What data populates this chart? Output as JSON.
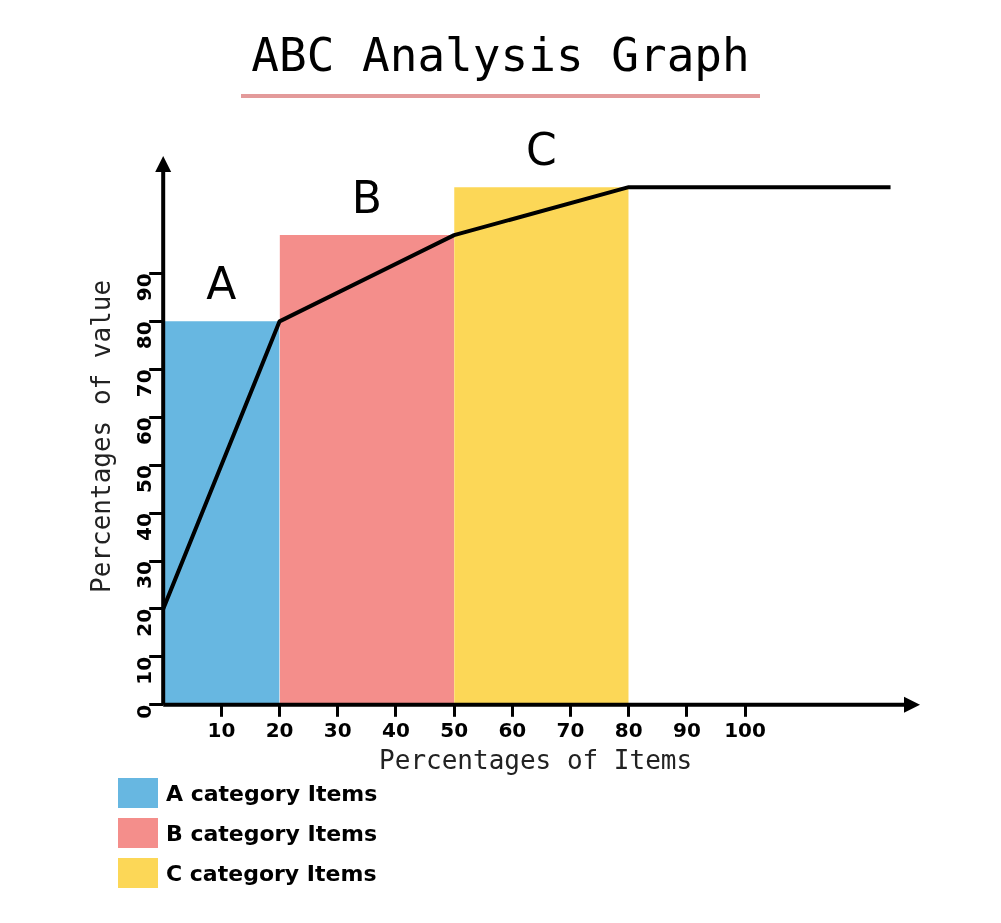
{
  "chart_data": {
    "type": "histogram",
    "title": "ABC Analysis Graph",
    "xlabel": "Percentages of Items",
    "ylabel": "Percentages of value",
    "series": [
      {
        "type": "histogram",
        "name": "A category Items",
        "color": "#67b7e1",
        "bins": [
          0,
          20
        ],
        "values": [
          80
        ]
      },
      {
        "type": "histogram",
        "name": "B category Items",
        "color": "#f48e8b",
        "bins": [
          20,
          50
        ],
        "values": [
          98
        ]
      },
      {
        "type": "histogram",
        "name": "C category Items",
        "color": "#fcd757",
        "bins": [
          50,
          80
        ],
        "values": [
          108
        ]
      },
      {
        "type": "line",
        "color": "#000000",
        "x": [
          0,
          20,
          50,
          80,
          125
        ],
        "values": [
          20,
          80,
          98,
          108,
          108
        ]
      }
    ],
    "annotations": [
      {
        "text": "A",
        "x": 10,
        "y": 80
      },
      {
        "text": "B",
        "x": 35,
        "y": 98
      },
      {
        "text": "C",
        "x": 65,
        "y": 108
      }
    ],
    "xlim": [
      0,
      128
    ],
    "ylim": [
      0,
      112
    ],
    "xticks": [
      10,
      20,
      30,
      40,
      50,
      60,
      70,
      80,
      90,
      100
    ],
    "yticks": [
      0,
      10,
      20,
      30,
      40,
      50,
      60,
      70,
      80,
      90
    ],
    "grid": false,
    "legend": "bottom left",
    "marker": "none",
    "line_style": "solid"
  }
}
